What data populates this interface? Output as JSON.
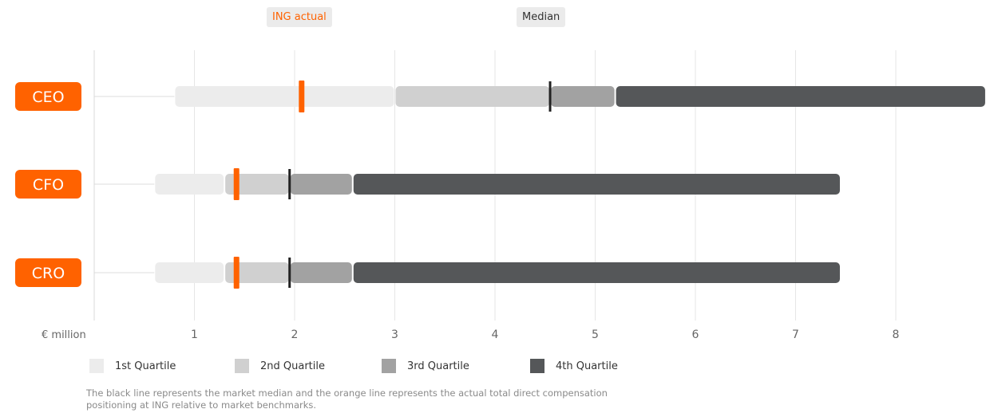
{
  "top_labels": {
    "actual": "ING actual",
    "median": "Median"
  },
  "footnote": "The black line represents the market median and the orange line represents the actual total direct compensation positioning at ING relative to market benchmarks.",
  "colors": {
    "accent": "#ff6200",
    "q1": "#ececec",
    "q2": "#d0d0d0",
    "q3": "#a2a2a2",
    "q4": "#555759",
    "median": "#222222",
    "grid": "#e6e6e6"
  },
  "chart_data": {
    "type": "bar",
    "orientation": "horizontal",
    "unit_label": "€ million",
    "x_ticks": [
      1,
      2,
      3,
      4,
      5,
      6,
      7,
      8
    ],
    "xlim": [
      0,
      8.9
    ],
    "grid": true,
    "legend": [
      "1st Quartile",
      "2nd Quartile",
      "3rd Quartile",
      "4th Quartile"
    ],
    "legend_position": "bottom",
    "roles": [
      {
        "label": "CEO",
        "min": 0.8,
        "q1": 3.0,
        "median": 4.55,
        "q3": 5.2,
        "max": 8.9,
        "actual": 2.07
      },
      {
        "label": "CFO",
        "min": 0.6,
        "q1": 1.3,
        "median": 1.95,
        "q3": 2.58,
        "max": 7.45,
        "actual": 1.42
      },
      {
        "label": "CRO",
        "min": 0.6,
        "q1": 1.3,
        "median": 1.95,
        "q3": 2.58,
        "max": 7.45,
        "actual": 1.42
      }
    ]
  }
}
